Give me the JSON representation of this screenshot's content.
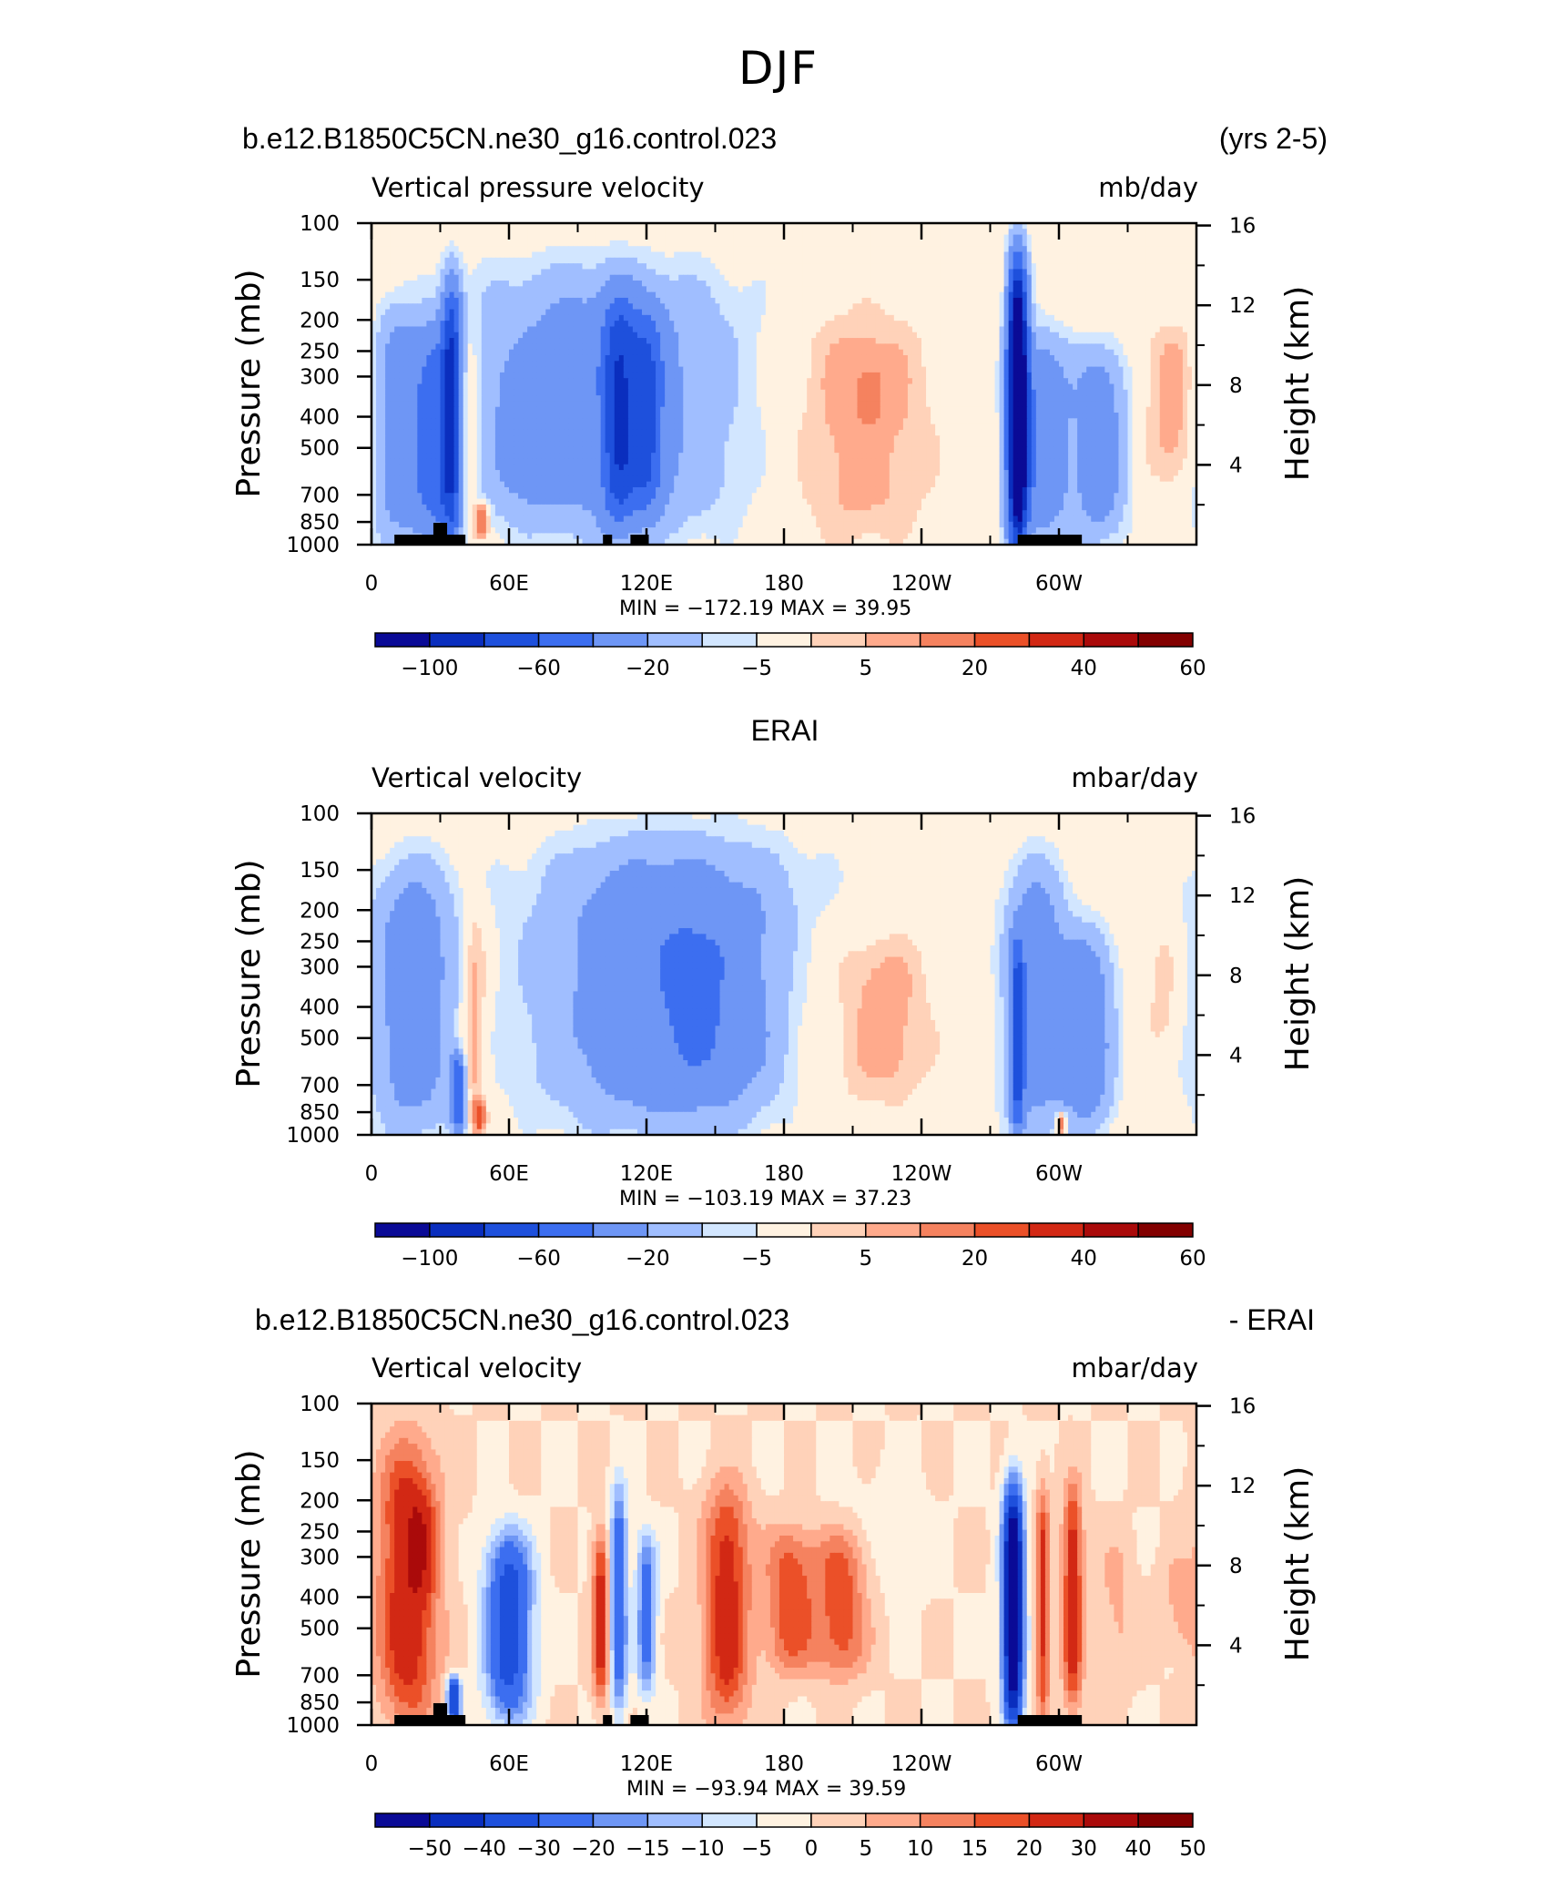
{
  "figure_title": "DJF",
  "colors": {
    "scale_main": [
      "#0a0a96",
      "#0a2ebe",
      "#1e50dc",
      "#3c6ef0",
      "#6e96f5",
      "#a0beff",
      "#d2e6ff",
      "#fff2e1",
      "#ffd2b9",
      "#ffaa8c",
      "#f5825f",
      "#eb5028",
      "#d22814",
      "#aa0a0a",
      "#820000"
    ],
    "scale_diff": [
      "#0a0a96",
      "#0a2ebe",
      "#1e50dc",
      "#3c6ef0",
      "#6e96f5",
      "#a0beff",
      "#d2e6ff",
      "#fff2e1",
      "#ffd2b9",
      "#ffaa8c",
      "#f5825f",
      "#eb5028",
      "#d22814",
      "#aa0a0a",
      "#820000"
    ],
    "land_mask": "#000000"
  },
  "chart_data": [
    {
      "type": "heatmap",
      "header_left": "b.e12.B1850C5CN.ne30_g16.control.023",
      "header_right": "(yrs 2-5)",
      "subtitle_left": "Vertical pressure velocity",
      "subtitle_right": "mb/day",
      "ylabel": "Pressure (mb)",
      "ylabel_right": "Height (km)",
      "x_ticks": [
        "0",
        "60E",
        "120E",
        "180",
        "120W",
        "60W"
      ],
      "x_tick_lon": [
        0,
        60,
        120,
        180,
        240,
        300
      ],
      "xlim": [
        0,
        360
      ],
      "y_ticks": [
        "100",
        "150",
        "200",
        "250",
        "300",
        "400",
        "500",
        "700",
        "850",
        "1000"
      ],
      "y_tick_p": [
        100,
        150,
        200,
        250,
        300,
        400,
        500,
        700,
        850,
        1000
      ],
      "ylim": [
        1000,
        100
      ],
      "y_scale": "log",
      "y_right_ticks": [
        "16",
        "12",
        "8",
        "4"
      ],
      "y_right_km": [
        16,
        12,
        8,
        4
      ],
      "min_max_text": "MIN = −172.19   MAX =   39.95",
      "min": -172.19,
      "max": 39.95,
      "colorbar_labels": [
        "−100",
        "−60",
        "−20",
        "−5",
        "5",
        "20",
        "40",
        "60"
      ],
      "colorbar_label_bins": [
        1,
        3,
        5,
        7,
        9,
        11,
        13,
        15
      ],
      "features": [
        {
          "lon": 10,
          "width": 7,
          "p_top": 180,
          "p_bot": 1000,
          "amp": -25
        },
        {
          "lon": 27,
          "width": 7,
          "p_top": 210,
          "p_bot": 1000,
          "amp": -45
        },
        {
          "lon": 35,
          "width": 3,
          "p_top": 150,
          "p_bot": 950,
          "amp": -70
        },
        {
          "lon": 41,
          "width": 4,
          "p_top": 210,
          "p_bot": 900,
          "amp": 18
        },
        {
          "lon": 48,
          "width": 2,
          "p_top": 750,
          "p_bot": 960,
          "amp": 38
        },
        {
          "lon": 100,
          "width": 42,
          "p_top": 135,
          "p_bot": 960,
          "amp": -28
        },
        {
          "lon": 108,
          "width": 5,
          "p_top": 170,
          "p_bot": 880,
          "amp": -55
        },
        {
          "lon": 120,
          "width": 5,
          "p_top": 190,
          "p_bot": 800,
          "amp": -45
        },
        {
          "lon": 70,
          "width": 10,
          "p_top": 260,
          "p_bot": 720,
          "amp": -14
        },
        {
          "lon": 212,
          "width": 22,
          "p_top": 180,
          "p_bot": 990,
          "amp": 14
        },
        {
          "lon": 218,
          "width": 8,
          "p_top": 250,
          "p_bot": 450,
          "amp": 10
        },
        {
          "lon": 282,
          "width": 3,
          "p_top": 130,
          "p_bot": 1000,
          "amp": -140
        },
        {
          "lon": 292,
          "width": 9,
          "p_top": 220,
          "p_bot": 1000,
          "amp": -35
        },
        {
          "lon": 318,
          "width": 8,
          "p_top": 240,
          "p_bot": 980,
          "amp": -30
        },
        {
          "lon": 350,
          "width": 9,
          "p_top": 200,
          "p_bot": 660,
          "amp": 14
        }
      ],
      "land": [
        [
          10,
          41
        ],
        [
          101,
          105
        ],
        [
          113,
          121
        ],
        [
          282,
          310
        ]
      ]
    },
    {
      "type": "heatmap",
      "header_center": "ERAI",
      "subtitle_left": "Vertical velocity",
      "subtitle_right": "mbar/day",
      "ylabel": "Pressure (mb)",
      "ylabel_right": "Height (km)",
      "x_ticks": [
        "0",
        "60E",
        "120E",
        "180",
        "120W",
        "60W"
      ],
      "x_tick_lon": [
        0,
        60,
        120,
        180,
        240,
        300
      ],
      "xlim": [
        0,
        360
      ],
      "y_ticks": [
        "100",
        "150",
        "200",
        "250",
        "300",
        "400",
        "500",
        "700",
        "850",
        "1000"
      ],
      "y_tick_p": [
        100,
        150,
        200,
        250,
        300,
        400,
        500,
        700,
        850,
        1000
      ],
      "ylim": [
        1000,
        100
      ],
      "y_scale": "log",
      "y_right_ticks": [
        "16",
        "12",
        "8",
        "4"
      ],
      "y_right_km": [
        16,
        12,
        8,
        4
      ],
      "min_max_text": "MIN = −103.19   MAX =   37.23",
      "min": -103.19,
      "max": 37.23,
      "colorbar_labels": [
        "−100",
        "−60",
        "−20",
        "−5",
        "5",
        "20",
        "40",
        "60"
      ],
      "colorbar_label_bins": [
        1,
        3,
        5,
        7,
        9,
        11,
        13,
        15
      ],
      "features": [
        {
          "lon": 18,
          "width": 13,
          "p_top": 140,
          "p_bot": 1000,
          "amp": -30
        },
        {
          "lon": 38,
          "width": 2,
          "p_top": 560,
          "p_bot": 1000,
          "amp": -55
        },
        {
          "lon": 45,
          "width": 4,
          "p_top": 190,
          "p_bot": 970,
          "amp": 18
        },
        {
          "lon": 47,
          "width": 2,
          "p_top": 780,
          "p_bot": 980,
          "amp": 30
        },
        {
          "lon": 130,
          "width": 40,
          "p_top": 120,
          "p_bot": 970,
          "amp": -34
        },
        {
          "lon": 147,
          "width": 16,
          "p_top": 190,
          "p_bot": 750,
          "amp": -12
        },
        {
          "lon": 210,
          "width": 25,
          "p_top": 200,
          "p_bot": 950,
          "amp": 10
        },
        {
          "lon": 225,
          "width": 10,
          "p_top": 270,
          "p_bot": 700,
          "amp": 8
        },
        {
          "lon": 290,
          "width": 10,
          "p_top": 140,
          "p_bot": 1000,
          "amp": -30
        },
        {
          "lon": 282,
          "width": 2,
          "p_top": 250,
          "p_bot": 1000,
          "amp": -60
        },
        {
          "lon": 313,
          "width": 8,
          "p_top": 230,
          "p_bot": 980,
          "amp": -30
        },
        {
          "lon": 301,
          "width": 1.5,
          "p_top": 850,
          "p_bot": 1000,
          "amp": 35
        },
        {
          "lon": 346,
          "width": 6,
          "p_top": 230,
          "p_bot": 560,
          "amp": 8
        }
      ],
      "land": []
    },
    {
      "type": "heatmap",
      "header_left": "b.e12.B1850C5CN.ne30_g16.control.023",
      "header_right": "- ERAI",
      "subtitle_left": "Vertical velocity",
      "subtitle_right": "mbar/day",
      "ylabel": "Pressure (mb)",
      "ylabel_right": "Height (km)",
      "x_ticks": [
        "0",
        "60E",
        "120E",
        "180",
        "120W",
        "60W"
      ],
      "x_tick_lon": [
        0,
        60,
        120,
        180,
        240,
        300
      ],
      "xlim": [
        0,
        360
      ],
      "y_ticks": [
        "100",
        "150",
        "200",
        "250",
        "300",
        "400",
        "500",
        "700",
        "850",
        "1000"
      ],
      "y_tick_p": [
        100,
        150,
        200,
        250,
        300,
        400,
        500,
        700,
        850,
        1000
      ],
      "ylim": [
        1000,
        100
      ],
      "y_scale": "log",
      "y_right_ticks": [
        "16",
        "12",
        "8",
        "4"
      ],
      "y_right_km": [
        16,
        12,
        8,
        4
      ],
      "min_max_text": "MIN = −93.94   MAX =   39.59",
      "min": -93.94,
      "max": 39.59,
      "colorbar_labels": [
        "−50",
        "−40",
        "−30",
        "−20",
        "−15",
        "−10",
        "−5",
        "0",
        "5",
        "10",
        "15",
        "20",
        "30",
        "40",
        "50"
      ],
      "colorbar_label_bins": [
        1,
        2,
        3,
        4,
        5,
        6,
        7,
        8,
        9,
        10,
        11,
        12,
        13,
        14,
        15
      ],
      "features": [
        {
          "lon": 16,
          "width": 9,
          "p_top": 130,
          "p_bot": 980,
          "amp": 27
        },
        {
          "lon": 22,
          "width": 4,
          "p_top": 190,
          "p_bot": 400,
          "amp": 10
        },
        {
          "lon": 36,
          "width": 2,
          "p_top": 700,
          "p_bot": 1000,
          "amp": -40
        },
        {
          "lon": 60,
          "width": 7,
          "p_top": 250,
          "p_bot": 960,
          "amp": -36
        },
        {
          "lon": 100,
          "width": 2.5,
          "p_top": 250,
          "p_bot": 850,
          "amp": 24
        },
        {
          "lon": 108,
          "width": 2.5,
          "p_top": 180,
          "p_bot": 920,
          "amp": -28
        },
        {
          "lon": 120,
          "width": 3,
          "p_top": 250,
          "p_bot": 800,
          "amp": -24
        },
        {
          "lon": 155,
          "width": 7,
          "p_top": 180,
          "p_bot": 990,
          "amp": 24
        },
        {
          "lon": 183,
          "width": 8,
          "p_top": 240,
          "p_bot": 700,
          "amp": 18
        },
        {
          "lon": 205,
          "width": 8,
          "p_top": 250,
          "p_bot": 720,
          "amp": 18
        },
        {
          "lon": 225,
          "width": 12,
          "p_top": 150,
          "p_bot": 450,
          "amp": -2
        },
        {
          "lon": 280,
          "width": 3,
          "p_top": 180,
          "p_bot": 1000,
          "amp": -70
        },
        {
          "lon": 293,
          "width": 2,
          "p_top": 180,
          "p_bot": 980,
          "amp": 22
        },
        {
          "lon": 306,
          "width": 3,
          "p_top": 180,
          "p_bot": 900,
          "amp": 26
        },
        {
          "lon": 325,
          "width": 6,
          "p_top": 250,
          "p_bot": 800,
          "amp": 6
        },
        {
          "lon": 352,
          "width": 6,
          "p_top": 300,
          "p_bot": 600,
          "amp": 6
        }
      ],
      "land": [
        [
          10,
          41
        ],
        [
          101,
          105
        ],
        [
          113,
          121
        ],
        [
          282,
          310
        ]
      ]
    }
  ]
}
